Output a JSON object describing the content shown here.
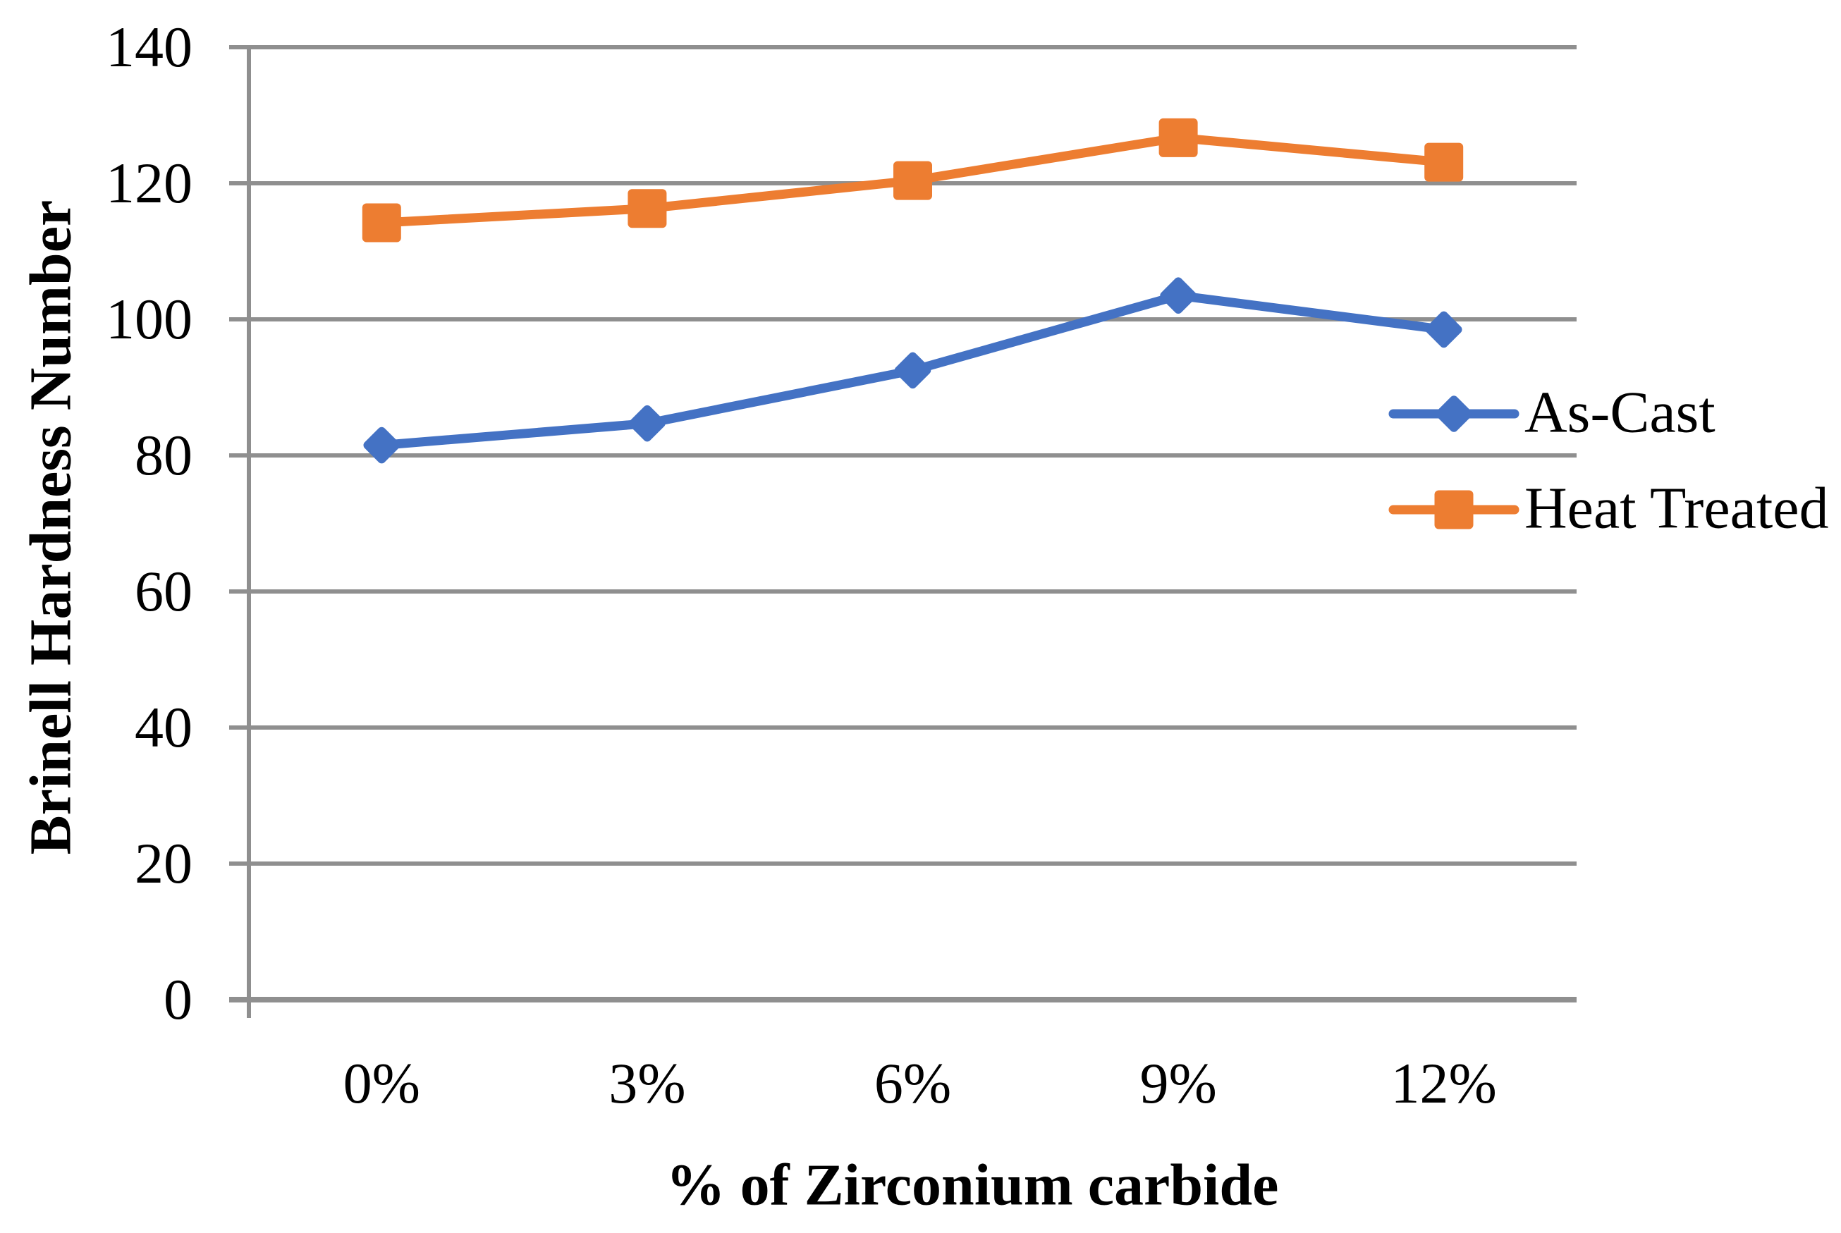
{
  "chart_data": {
    "type": "line",
    "categories": [
      "0%",
      "3%",
      "6%",
      "9%",
      "12%"
    ],
    "series": [
      {
        "name": "As-Cast",
        "color": "#4472C4",
        "marker": "diamond",
        "values": [
          81.5,
          84.7,
          92.5,
          103.5,
          98.5
        ]
      },
      {
        "name": "Heat Treated",
        "color": "#ED7D31",
        "marker": "square",
        "values": [
          114.2,
          116.3,
          120.4,
          126.7,
          123.1
        ]
      }
    ],
    "xlabel": "% of Zirconium carbide",
    "ylabel": "Brinell Hardness Number",
    "ylim": [
      0,
      140
    ],
    "yticks": [
      0,
      20,
      40,
      60,
      80,
      100,
      120,
      140
    ],
    "grid": true,
    "legend_position": "inside-right",
    "colors": {
      "gridline": "#8F8F8F",
      "axis": "#8F8F8F",
      "text": "#000000",
      "background": "#FFFFFF"
    }
  }
}
